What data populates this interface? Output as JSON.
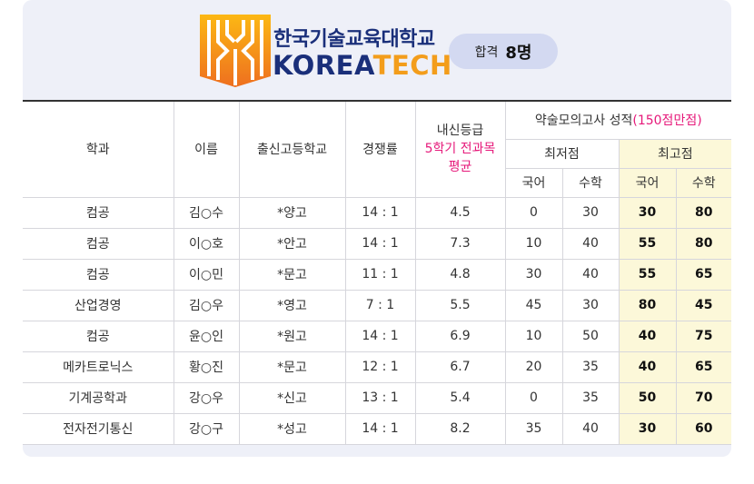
{
  "brand": {
    "name_kr": "한국기술교육대학교",
    "name_en_1": "KOREA",
    "name_en_2": "TECH",
    "colors": {
      "navy": "#1a2f7a",
      "orange": "#f39d1b",
      "highlight": "#fcf8d9",
      "pink": "#e6197a"
    }
  },
  "badge": {
    "label": "합격",
    "count": "8명"
  },
  "table": {
    "headers": {
      "dept": "학과",
      "name": "이름",
      "school": "출신고등학교",
      "ratio": "경쟁률",
      "grade_1": "내신등급",
      "grade_2": "5학기 전과목",
      "grade_3": "평균",
      "mock_title": "약술모의고사 성적",
      "mock_note": "(150점만점)",
      "min": "최저점",
      "max": "최고점",
      "kor": "국어",
      "math": "수학"
    },
    "rows": [
      {
        "dept": "컴공",
        "name": "김○수",
        "school": "*양고",
        "ratio": "14 : 1",
        "grade": "4.5",
        "min_kor": "0",
        "min_math": "30",
        "max_kor": "30",
        "max_math": "80"
      },
      {
        "dept": "컴공",
        "name": "이○호",
        "school": "*안고",
        "ratio": "14 : 1",
        "grade": "7.3",
        "min_kor": "10",
        "min_math": "40",
        "max_kor": "55",
        "max_math": "80"
      },
      {
        "dept": "컴공",
        "name": "이○민",
        "school": "*문고",
        "ratio": "11 : 1",
        "grade": "4.8",
        "min_kor": "30",
        "min_math": "40",
        "max_kor": "55",
        "max_math": "65"
      },
      {
        "dept": "산업경영",
        "name": "김○우",
        "school": "*영고",
        "ratio": "7 : 1",
        "grade": "5.5",
        "min_kor": "45",
        "min_math": "30",
        "max_kor": "80",
        "max_math": "45"
      },
      {
        "dept": "컴공",
        "name": "윤○인",
        "school": "*원고",
        "ratio": "14 : 1",
        "grade": "6.9",
        "min_kor": "10",
        "min_math": "50",
        "max_kor": "40",
        "max_math": "75"
      },
      {
        "dept": "메카트로닉스",
        "name": "황○진",
        "school": "*문고",
        "ratio": "12 : 1",
        "grade": "6.7",
        "min_kor": "20",
        "min_math": "35",
        "max_kor": "40",
        "max_math": "65"
      },
      {
        "dept": "기계공학과",
        "name": "강○우",
        "school": "*신고",
        "ratio": "13 : 1",
        "grade": "5.4",
        "min_kor": "0",
        "min_math": "35",
        "max_kor": "50",
        "max_math": "70"
      },
      {
        "dept": "전자전기통신",
        "name": "강○구",
        "school": "*성고",
        "ratio": "14 : 1",
        "grade": "8.2",
        "min_kor": "35",
        "min_math": "40",
        "max_kor": "30",
        "max_math": "60"
      }
    ]
  }
}
